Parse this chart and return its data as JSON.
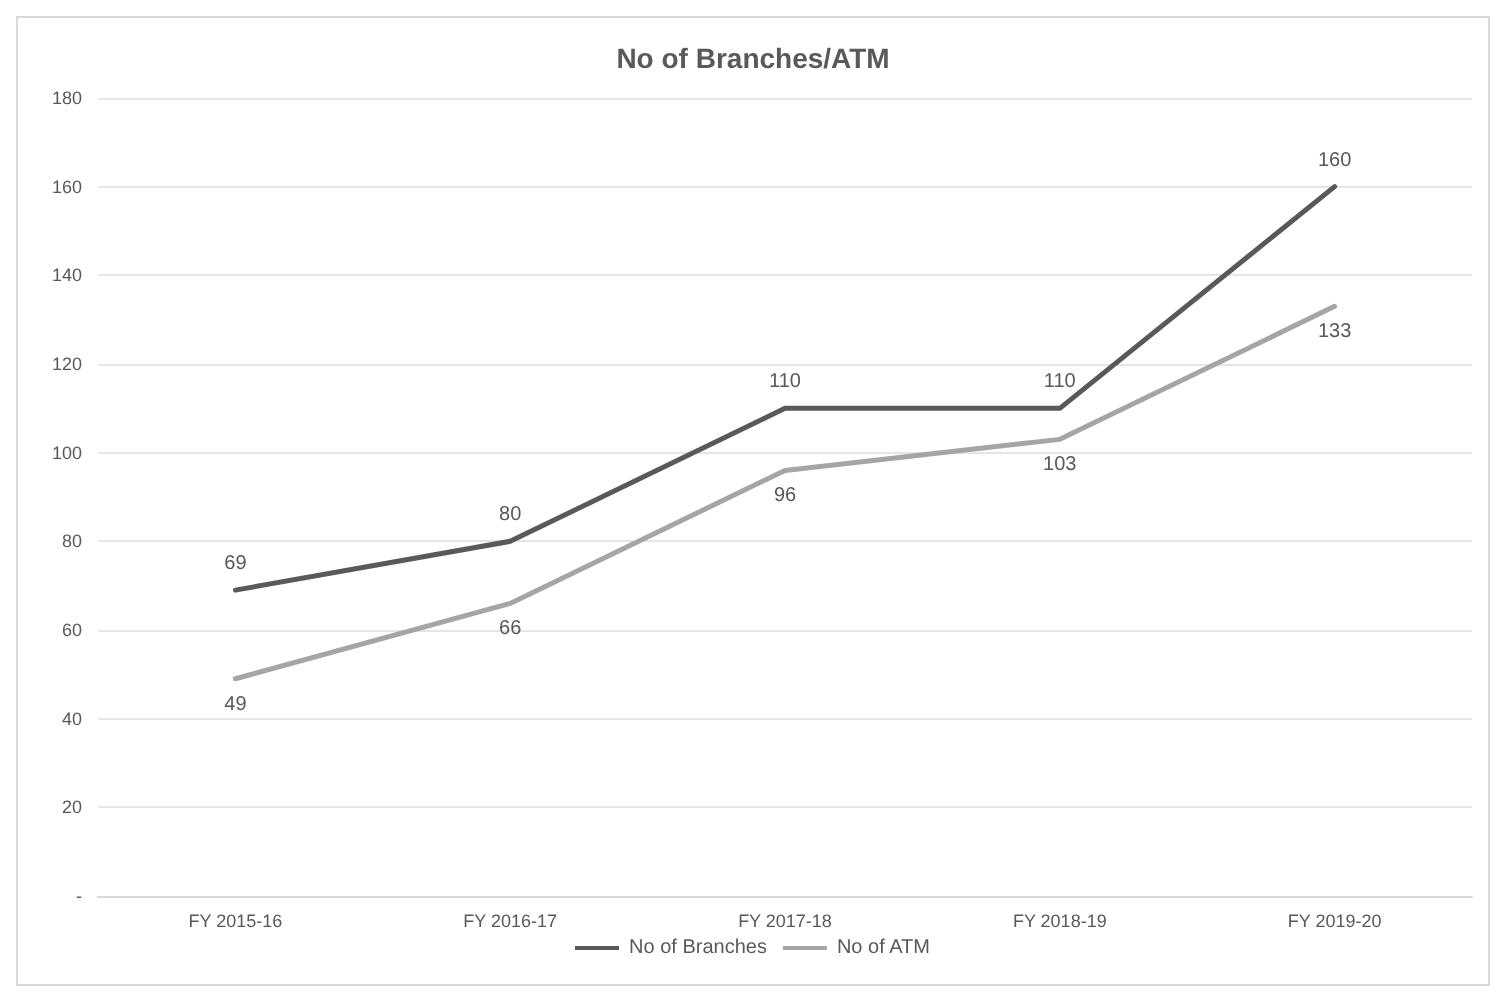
{
  "chart_data": {
    "type": "line",
    "title": "No of Branches/ATM",
    "categories": [
      "FY 2015-16",
      "FY 2016-17",
      "FY 2017-18",
      "FY 2018-19",
      "FY 2019-20"
    ],
    "series": [
      {
        "name": "No of Branches",
        "color": "#595959",
        "values": [
          69,
          80,
          110,
          110,
          160
        ]
      },
      {
        "name": "No of ATM",
        "color": "#a5a5a5",
        "values": [
          49,
          66,
          96,
          103,
          133
        ]
      }
    ],
    "ylim": [
      0,
      180
    ],
    "yticks": [
      {
        "value": 0,
        "label": "-"
      },
      20,
      40,
      60,
      80,
      100,
      120,
      140,
      160,
      180
    ],
    "grid": "y",
    "legend": "bottom",
    "data_labels": true,
    "marker": "none",
    "line_style": "solid"
  }
}
